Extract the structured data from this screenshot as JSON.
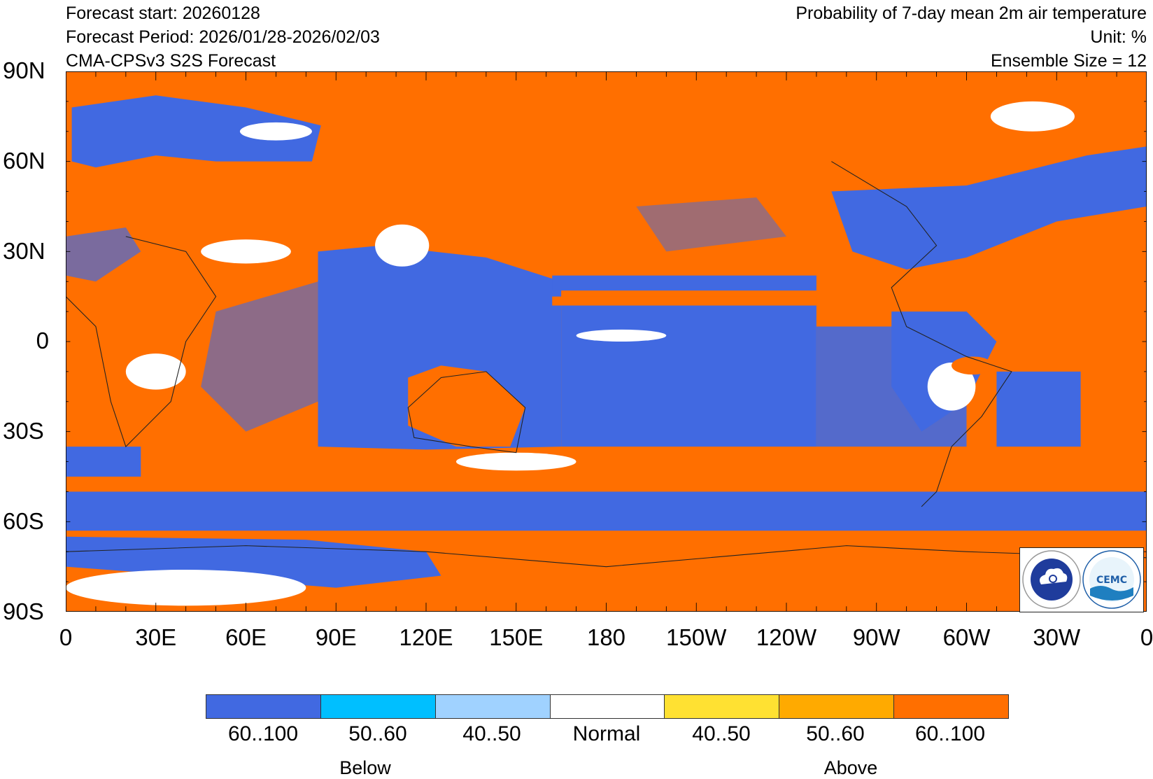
{
  "header": {
    "forecast_start": "Forecast start: 20260128",
    "forecast_period": "Forecast Period: 2026/01/28-2026/02/03",
    "model": "CMA-CPSv3 S2S Forecast",
    "title": "Probability of 7-day mean 2m air temperature",
    "unit": "Unit: %",
    "ensemble": "Ensemble Size = 12"
  },
  "map": {
    "projection": "equirectangular",
    "lon_range": [
      0,
      360
    ],
    "lat_range": [
      -90,
      90
    ],
    "lat_labels": [
      "90N",
      "60N",
      "30N",
      "0",
      "30S",
      "60S",
      "90S"
    ],
    "lon_labels": [
      "0",
      "30E",
      "60E",
      "90E",
      "120E",
      "150E",
      "180",
      "150W",
      "120W",
      "90W",
      "60W",
      "30W",
      "0"
    ],
    "background_category": "Above 60..100"
  },
  "logos": [
    "CMA-logo",
    "CEMC-logo"
  ],
  "legend": {
    "items": [
      {
        "label": "60..100",
        "color": "#4169E1"
      },
      {
        "label": "50..60",
        "color": "#00BFFF"
      },
      {
        "label": "40..50",
        "color": "#A0D2FF"
      },
      {
        "label": "Normal",
        "color": "#FFFFFF"
      },
      {
        "label": "40..50",
        "color": "#FFE132"
      },
      {
        "label": "50..60",
        "color": "#FFAA00"
      },
      {
        "label": "60..100",
        "color": "#FF6F00"
      }
    ],
    "below_label": "Below",
    "above_label": "Above"
  }
}
